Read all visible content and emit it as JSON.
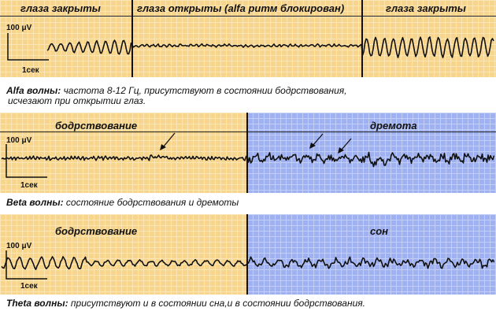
{
  "panel1": {
    "labels": [
      "глаза закрыты",
      "глаза открыты (alfa ритм блокирован)",
      "глаза закрыты"
    ],
    "scale_amp": "100 μV",
    "scale_time": "1сек"
  },
  "caption1": {
    "term": "Alfa волны:",
    "text": " частота 8-12 Гц, присутствуют в состоянии бодрствования,",
    "text2": "исчезают при открытии глаз."
  },
  "panel2": {
    "labels": [
      "бодрствование",
      "дремота"
    ],
    "scale_amp": "100 μV",
    "scale_time": "1сек"
  },
  "caption2": {
    "term": "Beta волны:",
    "text": " состояние бодрствования и дремоты"
  },
  "panel3": {
    "labels": [
      "бодрствование",
      "сон"
    ],
    "scale_amp": "100 μV",
    "scale_time": "1сек"
  },
  "caption3": {
    "term": "Theta волны:",
    "text": " присутствуют и в состоянии сна,и в состоянии бодрствования."
  },
  "colors": {
    "awake": "#f7d58c",
    "sleep": "#9fb1f0",
    "trace": "#111111"
  }
}
